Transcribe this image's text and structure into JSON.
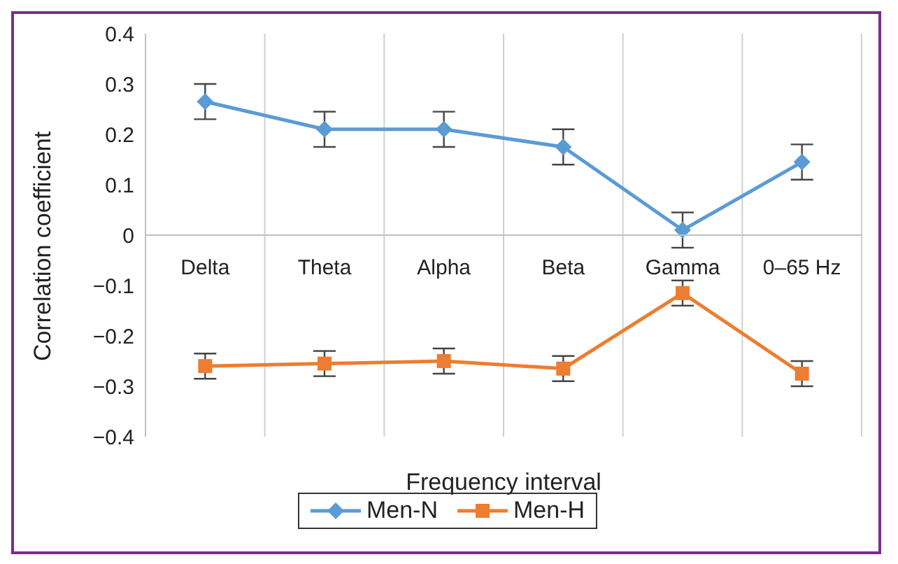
{
  "chart_data": {
    "type": "line",
    "xlabel": "Frequency interval",
    "ylabel": "Correlation coefficient",
    "categories": [
      "Delta",
      "Theta",
      "Alpha",
      "Beta",
      "Gamma",
      "0–65 Hz"
    ],
    "series": [
      {
        "name": "Men-N",
        "color": "#5b9bd5",
        "marker": "diamond",
        "values": [
          0.265,
          0.21,
          0.21,
          0.175,
          0.01,
          0.145
        ],
        "errors": [
          0.035,
          0.035,
          0.035,
          0.035,
          0.035,
          0.035
        ]
      },
      {
        "name": "Men-H",
        "color": "#ed7d31",
        "marker": "square",
        "values": [
          -0.26,
          -0.255,
          -0.25,
          -0.265,
          -0.115,
          -0.275
        ],
        "errors": [
          0.025,
          0.025,
          0.025,
          0.025,
          0.025,
          0.025
        ]
      }
    ],
    "ylim": [
      -0.4,
      0.4
    ],
    "yticks": [
      {
        "value": -0.4,
        "label": "−0.4"
      },
      {
        "value": -0.3,
        "label": "−0.3"
      },
      {
        "value": -0.2,
        "label": "−0.2"
      },
      {
        "value": -0.1,
        "label": "−0.1"
      },
      0,
      0.1,
      0.2,
      0.3,
      0.4
    ],
    "grid": "x",
    "legend": "bottom",
    "line_style": "solid"
  }
}
